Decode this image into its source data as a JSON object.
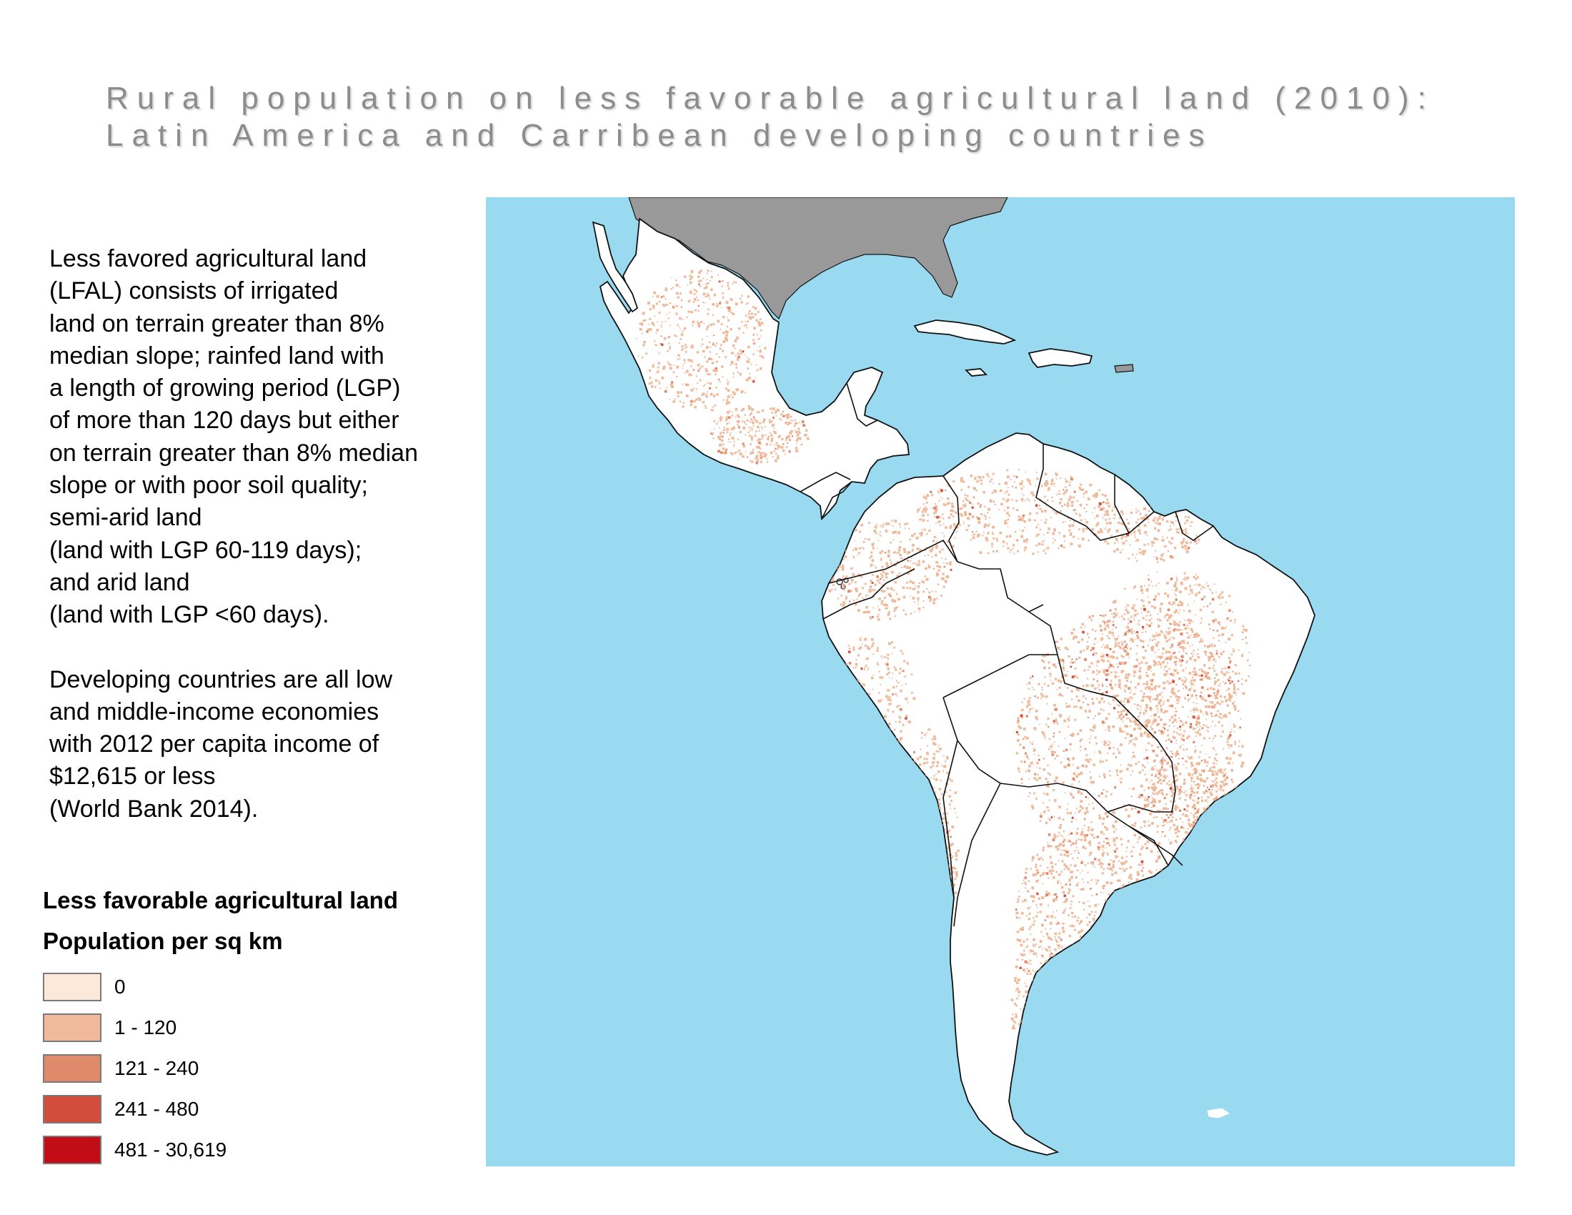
{
  "title": {
    "line1": "Rural population on less favorable agricultural land (2010):",
    "line2": "Latin America and Carribean developing countries"
  },
  "description": {
    "para1": [
      "Less favored agricultural land",
      "(LFAL) consists of irrigated",
      "land on terrain greater than 8%",
      "median slope; rainfed land with",
      "a length of growing period (LGP)",
      "of more than 120 days but either",
      "on terrain greater than 8% median",
      "slope or with poor soil quality;",
      "semi-arid land",
      "(land with LGP 60-119 days);",
      "and arid land",
      "(land with LGP <60 days)."
    ],
    "para2": [
      "Developing countries are all low",
      "and middle-income economies",
      "with 2012 per capita income of",
      "$12,615 or less",
      "(World Bank 2014)."
    ]
  },
  "legend": {
    "title": "Less favorable agricultural land",
    "subtitle": "Population per sq km",
    "items": [
      {
        "label": "0",
        "color": "#fde9d9"
      },
      {
        "label": "1 - 120",
        "color": "#efb99a"
      },
      {
        "label": "121 - 240",
        "color": "#e08a6c"
      },
      {
        "label": "241 - 480",
        "color": "#d34d3c"
      },
      {
        "label": "481 - 30,619",
        "color": "#c30d16"
      }
    ]
  },
  "map": {
    "ocean_color": "#99daf0",
    "land_color": "#ffffff",
    "non_developing_land_color": "#999999",
    "border_color": "#111111"
  }
}
